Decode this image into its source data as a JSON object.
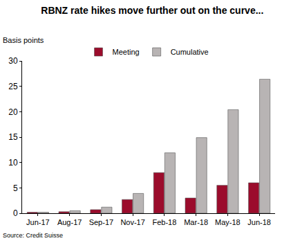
{
  "chart_data": {
    "type": "bar",
    "title": "RBNZ rate hikes move further out on the curve...",
    "ylabel": "Basis points",
    "source": "Source: Credit Suisse",
    "categories": [
      "Jun-17",
      "Aug-17",
      "Sep-17",
      "Nov-17",
      "Feb-18",
      "Mar-18",
      "May-18",
      "Jun-18"
    ],
    "series": [
      {
        "name": "Meeting",
        "color": "#9b0c2c",
        "values": [
          0.2,
          0.3,
          0.7,
          2.7,
          8,
          3,
          5.5,
          6
        ]
      },
      {
        "name": "Cumulative",
        "color": "#b8b4b4",
        "values": [
          0.2,
          0.5,
          1.2,
          3.9,
          11.9,
          14.9,
          20.4,
          26.4
        ]
      }
    ],
    "ylim": [
      0,
      30
    ],
    "yticks": [
      0,
      5,
      10,
      15,
      20,
      25,
      30
    ],
    "grid": false,
    "legend": "top"
  }
}
